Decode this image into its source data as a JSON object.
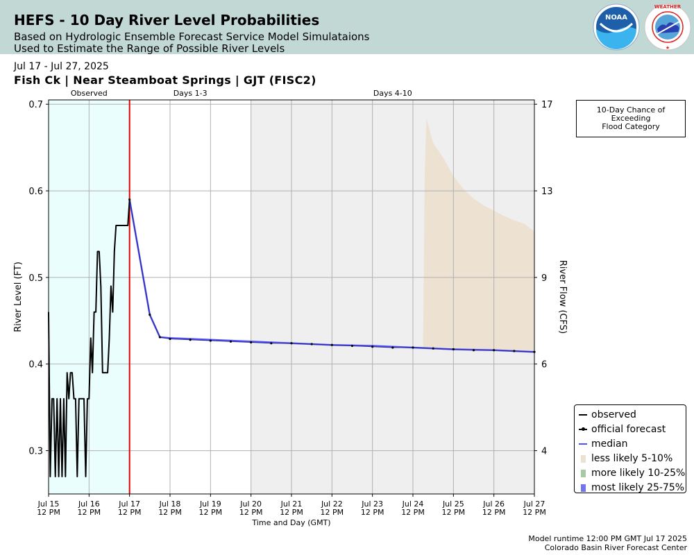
{
  "header": {
    "title": "HEFS - 10 Day River Level Probabilities",
    "subtitle_1": "Based on Hydrologic Ensemble Forecast Service Model Simulataions",
    "subtitle_2": "Used to Estimate the Range of Possible River Levels",
    "logos": [
      "noaa-logo",
      "national-weather-service-logo"
    ]
  },
  "date_range": "Jul 17 - Jul 27, 2025",
  "location_title": "Fish Ck | Near Steamboat Springs | GJT (FISC2)",
  "flood_box": {
    "line1": "10-Day Chance of",
    "line2": "Exceeding",
    "line3": "Flood Category"
  },
  "legend": {
    "observed": "observed",
    "official": "official forecast",
    "median": "median",
    "less_likely": "less likely 5-10%",
    "more_likely": "more likely 10-25%",
    "most_likely": "most likely 25-75%"
  },
  "footer": {
    "runtime": "Model runtime 12:00 PM GMT Jul 17 2025",
    "center": "Colorado Basin River Forecast Center"
  },
  "colors": {
    "banner": "#c2d8d5",
    "observed_region": "#ebfefe",
    "days_4_10_region": "#efefef",
    "forecast_start_line": "#e00000",
    "observed_line": "#000000",
    "official_forecast": "#000000",
    "median": "#5050ff",
    "less_likely": "#ede1d1",
    "more_likely": "#a6caa6",
    "most_likely": "#7474ee"
  },
  "chart_data": {
    "type": "line",
    "xlabel": "Time and Day (GMT)",
    "ylabel": "River Level (FT)",
    "y2label": "River Flow (CFS)",
    "x_range": [
      "2025-07-15T12:00",
      "2025-07-27T12:00"
    ],
    "ylim": [
      0.25,
      0.705
    ],
    "y_ticks": [
      0.3,
      0.4,
      0.5,
      0.6,
      0.7
    ],
    "y_tick_labels": [
      "0.3",
      "0.4",
      "0.5",
      "0.6",
      "0.7"
    ],
    "y2_ticks": [
      {
        "level": 0.3,
        "label": "4"
      },
      {
        "level": 0.4,
        "label": "6"
      },
      {
        "level": 0.5,
        "label": "9"
      },
      {
        "level": 0.6,
        "label": "13"
      },
      {
        "level": 0.7,
        "label": "17"
      }
    ],
    "x_ticks": [
      {
        "t": "2025-07-15T12:00",
        "line1": "Jul 15",
        "line2": "12 PM"
      },
      {
        "t": "2025-07-16T12:00",
        "line1": "Jul 16",
        "line2": "12 PM"
      },
      {
        "t": "2025-07-17T12:00",
        "line1": "Jul 17",
        "line2": "12 PM"
      },
      {
        "t": "2025-07-18T12:00",
        "line1": "Jul 18",
        "line2": "12 PM"
      },
      {
        "t": "2025-07-19T12:00",
        "line1": "Jul 19",
        "line2": "12 PM"
      },
      {
        "t": "2025-07-20T12:00",
        "line1": "Jul 20",
        "line2": "12 PM"
      },
      {
        "t": "2025-07-21T12:00",
        "line1": "Jul 21",
        "line2": "12 PM"
      },
      {
        "t": "2025-07-22T12:00",
        "line1": "Jul 22",
        "line2": "12 PM"
      },
      {
        "t": "2025-07-23T12:00",
        "line1": "Jul 23",
        "line2": "12 PM"
      },
      {
        "t": "2025-07-24T12:00",
        "line1": "Jul 24",
        "line2": "12 PM"
      },
      {
        "t": "2025-07-25T12:00",
        "line1": "Jul 25",
        "line2": "12 PM"
      },
      {
        "t": "2025-07-26T12:00",
        "line1": "Jul 26",
        "line2": "12 PM"
      },
      {
        "t": "2025-07-27T12:00",
        "line1": "Jul 27",
        "line2": "12 PM"
      }
    ],
    "regions": [
      {
        "label": "Observed",
        "start": "2025-07-15T12:00",
        "end": "2025-07-17T12:00",
        "shade": "observed_region"
      },
      {
        "label": "Days 1-3",
        "start": "2025-07-17T12:00",
        "end": "2025-07-20T12:00",
        "shade": ""
      },
      {
        "label": "Days 4-10",
        "start": "2025-07-20T12:00",
        "end": "2025-07-27T12:00",
        "shade": "days_4_10_region"
      }
    ],
    "forecast_start": "2025-07-17T12:00",
    "grid": true,
    "legend_position": "right, lower",
    "series": [
      {
        "name": "observed",
        "x": [
          "2025-07-15T12:00",
          "2025-07-15T13:00",
          "2025-07-15T14:00",
          "2025-07-15T15:00",
          "2025-07-15T16:00",
          "2025-07-15T17:00",
          "2025-07-15T18:00",
          "2025-07-15T19:00",
          "2025-07-15T20:00",
          "2025-07-15T21:00",
          "2025-07-15T22:00",
          "2025-07-15T23:00",
          "2025-07-16T00:00",
          "2025-07-16T01:00",
          "2025-07-16T02:00",
          "2025-07-16T03:00",
          "2025-07-16T04:00",
          "2025-07-16T05:00",
          "2025-07-16T06:00",
          "2025-07-16T07:00",
          "2025-07-16T08:00",
          "2025-07-16T09:00",
          "2025-07-16T10:00",
          "2025-07-16T11:00",
          "2025-07-16T12:00",
          "2025-07-16T13:00",
          "2025-07-16T14:00",
          "2025-07-16T15:00",
          "2025-07-16T16:00",
          "2025-07-16T17:00",
          "2025-07-16T18:00",
          "2025-07-16T19:00",
          "2025-07-16T20:00",
          "2025-07-16T21:00",
          "2025-07-16T22:00",
          "2025-07-16T23:00",
          "2025-07-17T00:00",
          "2025-07-17T01:00",
          "2025-07-17T02:00",
          "2025-07-17T03:00",
          "2025-07-17T04:00",
          "2025-07-17T05:00",
          "2025-07-17T06:00",
          "2025-07-17T07:00",
          "2025-07-17T08:00",
          "2025-07-17T09:00",
          "2025-07-17T10:00",
          "2025-07-17T11:00",
          "2025-07-17T12:00"
        ],
        "y": [
          0.46,
          0.27,
          0.36,
          0.36,
          0.27,
          0.36,
          0.27,
          0.36,
          0.27,
          0.36,
          0.27,
          0.39,
          0.36,
          0.39,
          0.39,
          0.36,
          0.36,
          0.27,
          0.36,
          0.36,
          0.36,
          0.36,
          0.27,
          0.36,
          0.36,
          0.43,
          0.39,
          0.46,
          0.46,
          0.53,
          0.53,
          0.49,
          0.39,
          0.39,
          0.39,
          0.39,
          0.43,
          0.49,
          0.46,
          0.53,
          0.56,
          0.56,
          0.56,
          0.56,
          0.56,
          0.56,
          0.56,
          0.56,
          0.59
        ]
      },
      {
        "name": "official forecast",
        "x": [
          "2025-07-17T12:00",
          "2025-07-18T00:00",
          "2025-07-18T06:00",
          "2025-07-18T12:00",
          "2025-07-19T00:00",
          "2025-07-19T12:00",
          "2025-07-20T00:00",
          "2025-07-20T12:00",
          "2025-07-21T00:00",
          "2025-07-21T12:00",
          "2025-07-22T00:00",
          "2025-07-22T12:00",
          "2025-07-23T00:00",
          "2025-07-23T12:00",
          "2025-07-24T00:00",
          "2025-07-24T12:00",
          "2025-07-25T00:00",
          "2025-07-25T12:00",
          "2025-07-26T00:00",
          "2025-07-26T12:00",
          "2025-07-27T00:00",
          "2025-07-27T12:00"
        ],
        "y": [
          0.59,
          0.457,
          0.431,
          0.429,
          0.428,
          0.427,
          0.426,
          0.425,
          0.424,
          0.424,
          0.423,
          0.422,
          0.421,
          0.42,
          0.419,
          0.419,
          0.418,
          0.417,
          0.416,
          0.416,
          0.415,
          0.414
        ]
      },
      {
        "name": "median",
        "x": [
          "2025-07-17T12:00",
          "2025-07-18T00:00",
          "2025-07-18T06:00",
          "2025-07-18T12:00",
          "2025-07-19T12:00",
          "2025-07-20T12:00",
          "2025-07-21T12:00",
          "2025-07-22T12:00",
          "2025-07-23T12:00",
          "2025-07-24T12:00",
          "2025-07-25T12:00",
          "2025-07-26T12:00",
          "2025-07-27T12:00"
        ],
        "y": [
          0.59,
          0.457,
          0.431,
          0.43,
          0.428,
          0.426,
          0.424,
          0.422,
          0.421,
          0.419,
          0.417,
          0.416,
          0.414
        ]
      }
    ],
    "bands": [
      {
        "name": "less likely 5-10%",
        "x": [
          "2025-07-24T18:00",
          "2025-07-24T19:00",
          "2025-07-24T20:00",
          "2025-07-25T00:00",
          "2025-07-25T06:00",
          "2025-07-25T12:00",
          "2025-07-25T18:00",
          "2025-07-26T00:00",
          "2025-07-26T06:00",
          "2025-07-26T12:00",
          "2025-07-26T18:00",
          "2025-07-27T00:00",
          "2025-07-27T06:00",
          "2025-07-27T12:00"
        ],
        "upper": [
          0.419,
          0.62,
          0.684,
          0.655,
          0.638,
          0.617,
          0.602,
          0.591,
          0.583,
          0.577,
          0.571,
          0.566,
          0.562,
          0.553
        ],
        "lower": [
          0.418,
          0.418,
          0.418,
          0.418,
          0.418,
          0.417,
          0.417,
          0.416,
          0.416,
          0.416,
          0.415,
          0.415,
          0.415,
          0.414
        ]
      }
    ]
  }
}
